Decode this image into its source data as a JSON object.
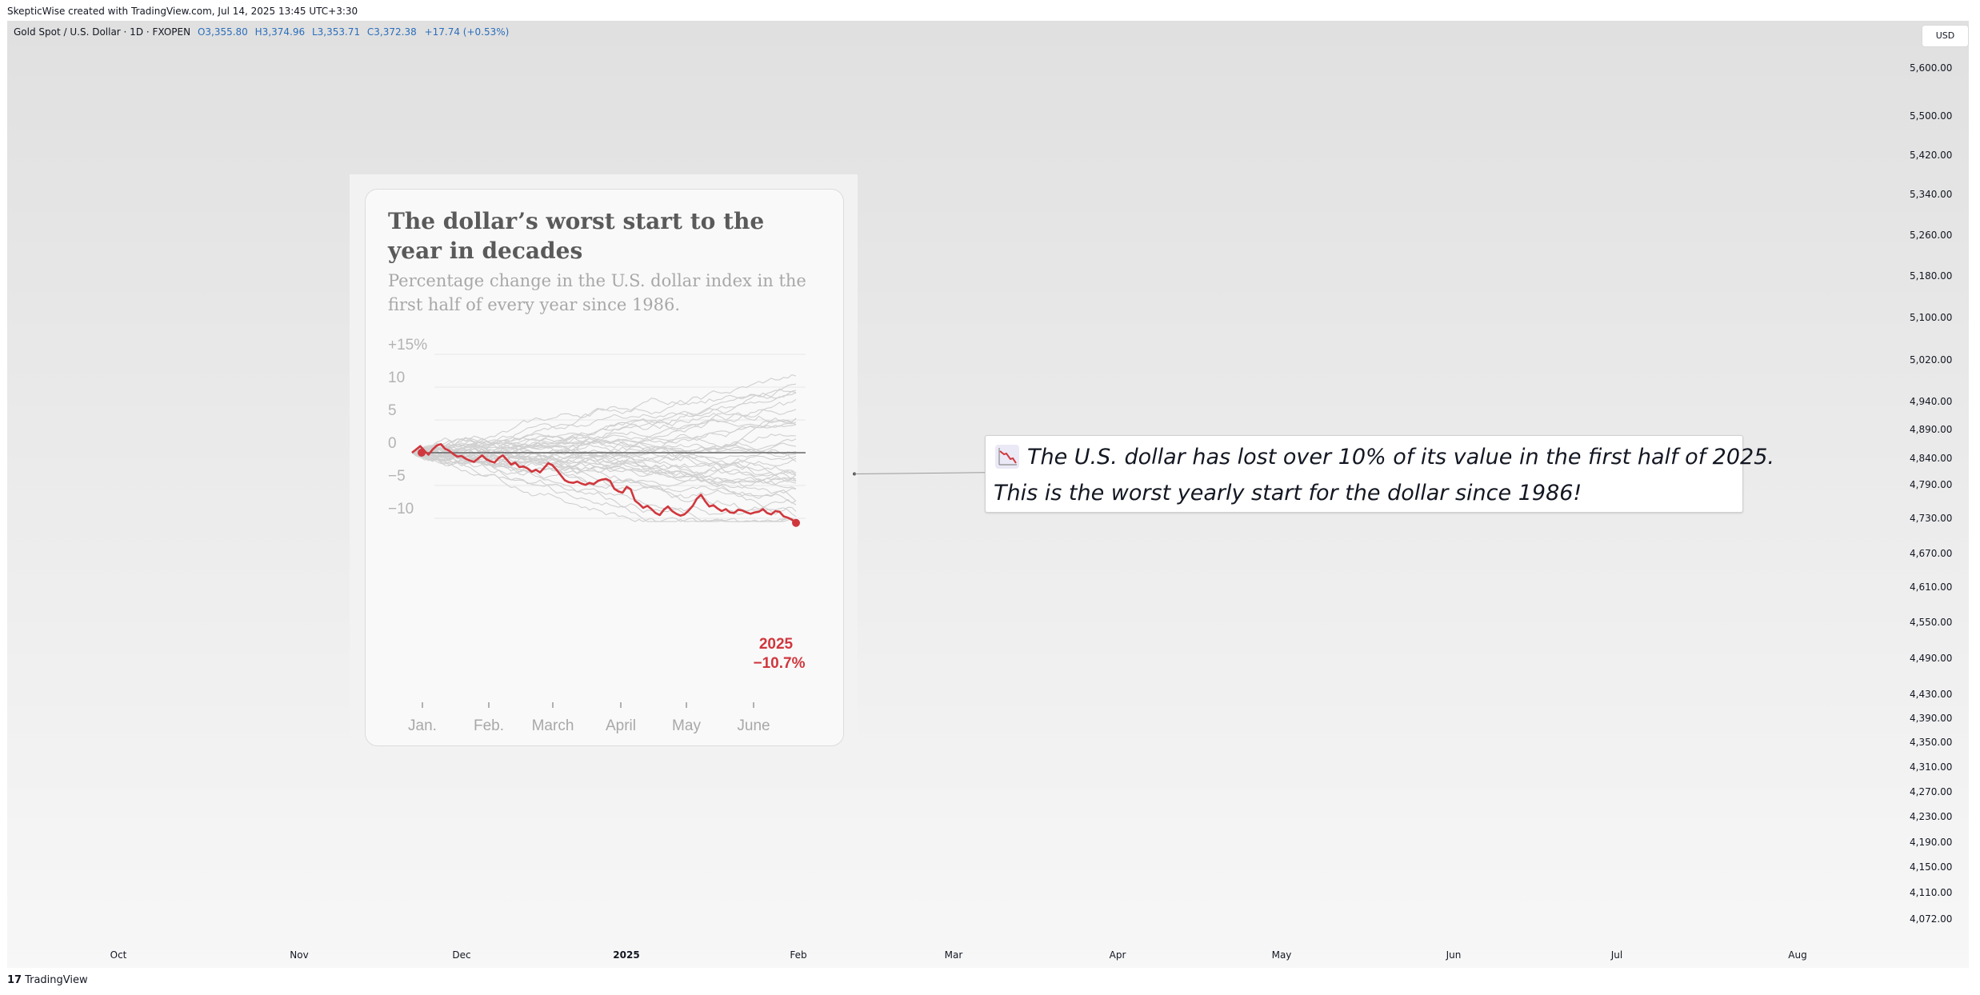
{
  "header": {
    "attribution": "SkepticWise created with TradingView.com, Jul 14, 2025 13:45 UTC+3:30"
  },
  "legend": {
    "symbol": "Gold Spot / U.S. Dollar · 1D · FXOPEN",
    "open": "O3,355.80",
    "high": "H3,374.96",
    "low": "L3,353.71",
    "close": "C3,372.38",
    "change": "+17.74 (+0.53%)"
  },
  "currency_button": "USD",
  "price_axis": [
    "5,600.00",
    "5,500.00",
    "5,420.00",
    "5,340.00",
    "5,260.00",
    "5,180.00",
    "5,100.00",
    "5,020.00",
    "4,940.00",
    "4,890.00",
    "4,840.00",
    "4,790.00",
    "4,730.00",
    "4,670.00",
    "4,610.00",
    "4,550.00",
    "4,490.00",
    "4,430.00",
    "4,390.00",
    "4,350.00",
    "4,310.00",
    "4,270.00",
    "4,230.00",
    "4,190.00",
    "4,150.00",
    "4,110.00",
    "4,072.00"
  ],
  "time_axis": [
    "Oct",
    "Nov",
    "Dec",
    "2025",
    "Feb",
    "Mar",
    "Apr",
    "May",
    "Jun",
    "Jul",
    "Aug"
  ],
  "brand": {
    "name": "TradingView",
    "mark": "17"
  },
  "colors": {
    "accent": "#d0373d",
    "legend_values": "#2a6ebb",
    "text": "#131722"
  },
  "embedded_image": {
    "title": "The dollar’s worst start to the year in decades",
    "subtitle": "Percentage change in the U.S. dollar index in the first half of every year since 1986.",
    "chart_data": {
      "type": "line",
      "ylim": [
        -11,
        16
      ],
      "y_ticks": [
        "+15%",
        "10",
        "5",
        "0",
        "−5",
        "−10"
      ],
      "y_tick_values": [
        15,
        10,
        5,
        0,
        -5,
        -10
      ],
      "x_ticks": [
        "Jan.",
        "Feb.",
        "March",
        "April",
        "May",
        "June"
      ],
      "highlight": {
        "name": "2025",
        "final_label": "−10.7%",
        "values": [
          0,
          0.5,
          1,
          0.3,
          -0.3,
          0.5,
          1.1,
          1.3,
          0.6,
          0.3,
          -0.2,
          -0.6,
          -0.5,
          -0.9,
          -1.2,
          -1.4,
          -0.9,
          -0.4,
          -1.0,
          -1.3,
          -1.5,
          -0.8,
          -0.4,
          -1.1,
          -1.8,
          -1.5,
          -2.2,
          -2.1,
          -2.4,
          -2.9,
          -2.6,
          -3.0,
          -2.3,
          -1.6,
          -1.9,
          -2.6,
          -3.4,
          -4.2,
          -4.5,
          -4.6,
          -4.4,
          -4.7,
          -4.9,
          -4.6,
          -4.8,
          -4.3,
          -4.1,
          -4.0,
          -4.3,
          -5.5,
          -5.9,
          -6.1,
          -5.2,
          -5.6,
          -7.3,
          -7.8,
          -8.4,
          -8.1,
          -8.6,
          -9.2,
          -9.5,
          -8.7,
          -8.2,
          -8.9,
          -9.3,
          -9.6,
          -9.4,
          -8.8,
          -8.1,
          -7.0,
          -6.4,
          -7.4,
          -8.2,
          -8.0,
          -8.5,
          -8.9,
          -8.6,
          -9.1,
          -9.2,
          -8.7,
          -8.8,
          -9.1,
          -9.3,
          -9.1,
          -9.0,
          -8.6,
          -9.2,
          -9.4,
          -8.9,
          -9.0,
          -9.7,
          -9.9,
          -10.2,
          -10.7
        ]
      },
      "background_series_count": 38
    }
  },
  "annotation": {
    "icon": "chart-decreasing-icon",
    "line1": "The U.S. dollar has lost over 10% of its value in the first half of 2025.",
    "line2": "This is the worst yearly start for the dollar since 1986!"
  }
}
